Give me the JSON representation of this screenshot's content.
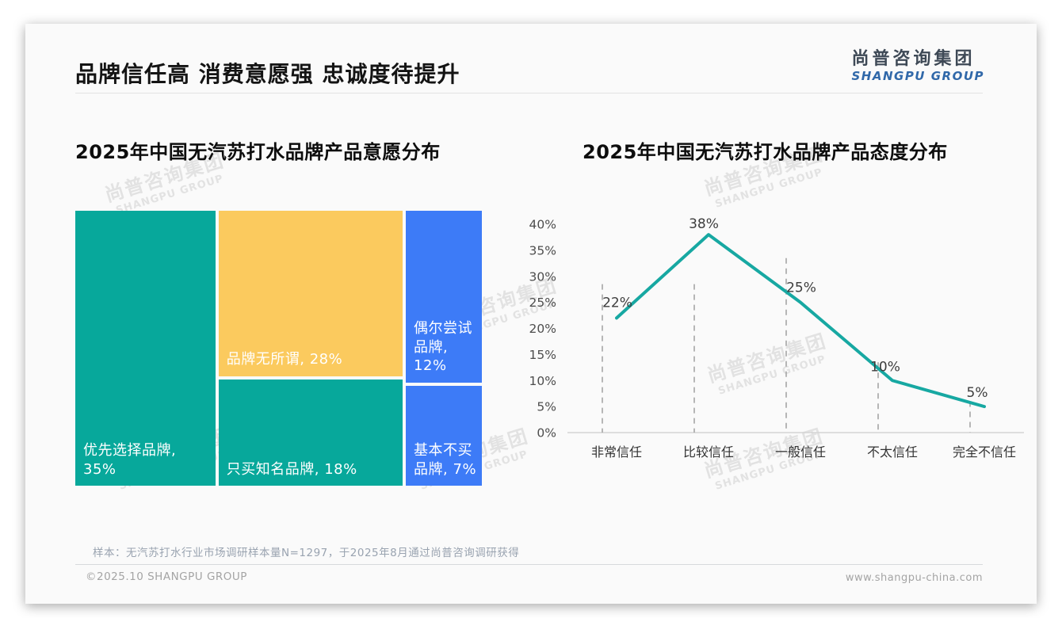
{
  "page": {
    "title": "品牌信任高 消费意愿强 忠诚度待提升",
    "logo": {
      "cn": "尚普咨询集团",
      "en": "SHANGPU GROUP"
    },
    "watermark": {
      "cn": "尚普咨询集团",
      "en": "SHANGPU GROUP"
    },
    "footnote": "样本：无汽苏打水行业市场调研样本量N=1297，于2025年8月通过尚普咨询调研获得",
    "footer": {
      "left": "©2025.10 SHANGPU GROUP",
      "right": "www.shangpu-china.com"
    }
  },
  "colors": {
    "teal": "#07a89b",
    "yellow": "#fbca5e",
    "blue": "#3d7bf7",
    "line": "#17a8a2",
    "axis_line": "#d4d4d4",
    "dashed_line": "#a6a6a6",
    "tick_label": "#4d4d4d",
    "category_label": "#333333",
    "data_label": "#3d3d3d"
  },
  "chart_data": [
    {
      "type": "treemap",
      "title": "2025年中国无汽苏打水品牌产品意愿分布",
      "items": [
        {
          "label": "优先选择品牌",
          "value": 35,
          "color": "#07a89b"
        },
        {
          "label": "品牌无所谓",
          "value": 28,
          "color": "#fbca5e"
        },
        {
          "label": "只买知名品牌",
          "value": 18,
          "color": "#07a89b"
        },
        {
          "label": "偶尔尝试品牌",
          "value": 12,
          "color": "#3d7bf7"
        },
        {
          "label": "基本不买品牌",
          "value": 7,
          "color": "#3d7bf7"
        }
      ],
      "label_format": "{label}, {value}%"
    },
    {
      "type": "line",
      "title": "2025年中国无汽苏打水品牌产品态度分布",
      "categories": [
        "非常信任",
        "比较信任",
        "一般信任",
        "不太信任",
        "完全不信任"
      ],
      "values": [
        22,
        38,
        25,
        10,
        5
      ],
      "data_labels": [
        "22%",
        "38%",
        "25%",
        "10%",
        "5%"
      ],
      "yticks": [
        "0%",
        "5%",
        "10%",
        "15%",
        "20%",
        "25%",
        "30%",
        "35%",
        "40%"
      ],
      "ylim": [
        0,
        40
      ],
      "grid": "dashed-vertical",
      "legend": "none",
      "line_color": "#17a8a2"
    }
  ]
}
